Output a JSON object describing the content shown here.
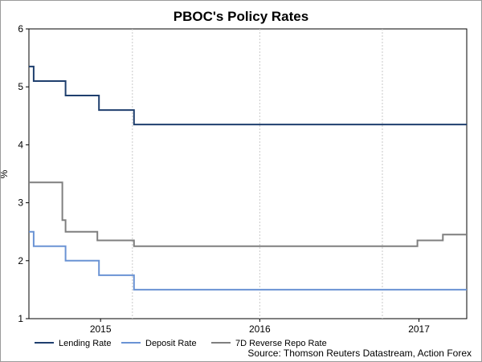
{
  "chart_data": {
    "type": "line",
    "title": "PBOC's Policy Rates",
    "ylabel": "%",
    "xlabel": "",
    "ylim": [
      1,
      6
    ],
    "xlim": [
      2014.55,
      2017.3
    ],
    "y_ticks": [
      1,
      2,
      3,
      4,
      5,
      6
    ],
    "x_ticks": [
      {
        "label": "2015",
        "value": 2015.0
      },
      {
        "label": "2016",
        "value": 2016.0
      },
      {
        "label": "2017",
        "value": 2017.0
      }
    ],
    "x_gridlines": [
      2015.2,
      2016.0,
      2016.77
    ],
    "grid": true,
    "series": [
      {
        "name": "Lending Rate",
        "color": "#1f3f6e",
        "points": [
          [
            2014.55,
            5.35
          ],
          [
            2014.58,
            5.35
          ],
          [
            2014.58,
            5.1
          ],
          [
            2014.78,
            5.1
          ],
          [
            2014.78,
            4.85
          ],
          [
            2014.99,
            4.85
          ],
          [
            2014.99,
            4.6
          ],
          [
            2015.21,
            4.6
          ],
          [
            2015.21,
            4.35
          ],
          [
            2017.3,
            4.35
          ]
        ]
      },
      {
        "name": "Deposit Rate",
        "color": "#6a93d4",
        "points": [
          [
            2014.55,
            2.5
          ],
          [
            2014.58,
            2.5
          ],
          [
            2014.58,
            2.25
          ],
          [
            2014.78,
            2.25
          ],
          [
            2014.78,
            2.0
          ],
          [
            2014.99,
            2.0
          ],
          [
            2014.99,
            1.75
          ],
          [
            2015.21,
            1.75
          ],
          [
            2015.21,
            1.5
          ],
          [
            2017.3,
            1.5
          ]
        ]
      },
      {
        "name": "7D Reverse Repo Rate",
        "color": "#7f7f7f",
        "points": [
          [
            2014.55,
            3.35
          ],
          [
            2014.76,
            3.35
          ],
          [
            2014.76,
            2.7
          ],
          [
            2014.78,
            2.7
          ],
          [
            2014.78,
            2.5
          ],
          [
            2014.98,
            2.5
          ],
          [
            2014.98,
            2.35
          ],
          [
            2015.21,
            2.35
          ],
          [
            2015.21,
            2.25
          ],
          [
            2016.99,
            2.25
          ],
          [
            2016.99,
            2.35
          ],
          [
            2017.15,
            2.35
          ],
          [
            2017.15,
            2.45
          ],
          [
            2017.3,
            2.45
          ]
        ]
      }
    ],
    "legend": [
      {
        "label": "Lending Rate",
        "color": "#1f3f6e"
      },
      {
        "label": "Deposit Rate",
        "color": "#6a93d4"
      },
      {
        "label": "7D Reverse Repo Rate",
        "color": "#7f7f7f"
      }
    ],
    "source": "Source: Thomson Reuters Datastream, Action Forex"
  }
}
